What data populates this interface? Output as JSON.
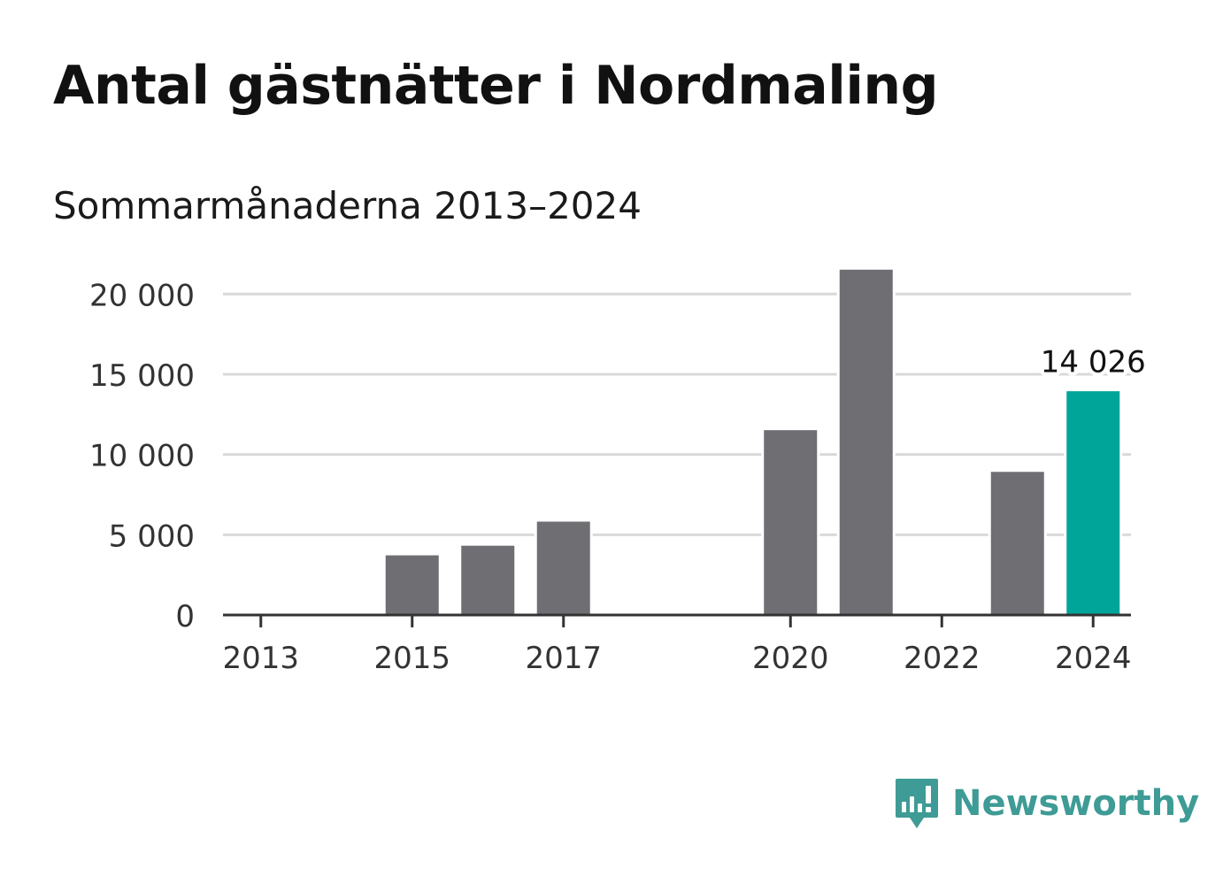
{
  "header": {
    "title": "Antal gästnätter i Nordmaling",
    "subtitle": "Sommarmånaderna 2013–2024"
  },
  "brand": {
    "name": "Newsworthy",
    "icon": "newsworthy-logo-icon",
    "color": "#3e9b95"
  },
  "colors": {
    "bar": "#6f6e73",
    "highlight": "#00a59a",
    "grid": "#d9d9d9",
    "axis": "#333333"
  },
  "chart_data": {
    "type": "bar",
    "title": "Antal gästnätter i Nordmaling",
    "subtitle": "Sommarmånaderna 2013–2024",
    "categories": [
      "2013",
      "2014",
      "2015",
      "2016",
      "2017",
      "2018",
      "2019",
      "2020",
      "2021",
      "2022",
      "2023",
      "2024"
    ],
    "values": [
      null,
      null,
      3800,
      4400,
      5900,
      null,
      null,
      11600,
      21600,
      null,
      9000,
      14026
    ],
    "highlight_index": 11,
    "data_labels": [
      {
        "index": 11,
        "text": "14 026"
      }
    ],
    "x_tick_labels": [
      "2013",
      "2015",
      "2017",
      "2020",
      "2022",
      "2024"
    ],
    "y_ticks": [
      0,
      5000,
      10000,
      15000,
      20000
    ],
    "y_tick_labels": [
      "0",
      "5 000",
      "10 000",
      "15 000",
      "20 000"
    ],
    "ylim": [
      0,
      22000
    ],
    "grid": true,
    "xlabel": "",
    "ylabel": ""
  }
}
